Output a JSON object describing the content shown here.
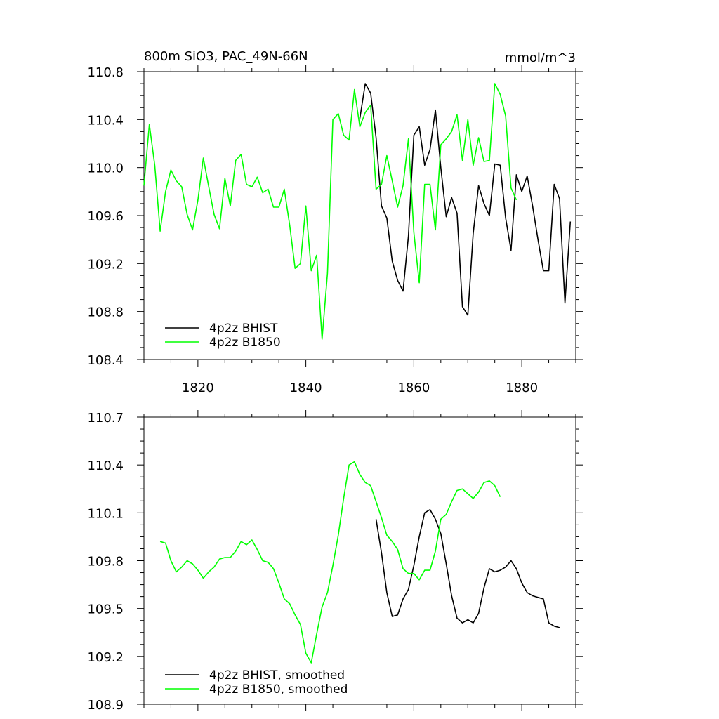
{
  "colors": {
    "bhist": "#000000",
    "b1850": "#00ff00"
  },
  "chart_data": [
    {
      "type": "line",
      "title": "800m SiO3, PAC_49N-66N",
      "units": "mmol/m^3",
      "xlim": [
        1810,
        1890
      ],
      "ylim": [
        108.4,
        110.8
      ],
      "x_major_ticks": [
        1820,
        1840,
        1860,
        1880
      ],
      "y_major_ticks": [
        108.4,
        108.8,
        109.2,
        109.6,
        110.0,
        110.4,
        110.8
      ],
      "x_tick_labels": [
        "1820",
        "1840",
        "1860",
        "1880"
      ],
      "y_tick_labels": [
        "108.4",
        "108.8",
        "109.2",
        "109.6",
        "110.0",
        "110.4",
        "110.8"
      ],
      "legend_position": "bottom-left",
      "series": [
        {
          "name": "4p2z BHIST",
          "color": "#000000",
          "x": [
            1850,
            1851,
            1852,
            1853,
            1854,
            1855,
            1856,
            1857,
            1858,
            1859,
            1860,
            1861,
            1862,
            1863,
            1864,
            1865,
            1866,
            1867,
            1868,
            1869,
            1870,
            1871,
            1872,
            1873,
            1874,
            1875,
            1876,
            1877,
            1878,
            1879,
            1880,
            1881,
            1882,
            1883,
            1884,
            1885,
            1886,
            1887,
            1888,
            1889
          ],
          "y": [
            110.41,
            110.7,
            110.62,
            110.25,
            109.68,
            109.58,
            109.22,
            109.06,
            108.97,
            109.43,
            110.27,
            110.34,
            110.02,
            110.15,
            110.48,
            110.0,
            109.59,
            109.75,
            109.62,
            108.84,
            108.77,
            109.45,
            109.85,
            109.7,
            109.6,
            110.03,
            110.02,
            109.58,
            109.31,
            109.94,
            109.8,
            109.93,
            109.68,
            109.4,
            109.14,
            109.14,
            109.86,
            109.74,
            108.87,
            109.55
          ]
        },
        {
          "name": "4p2z B1850",
          "color": "#00ff00",
          "x": [
            1810,
            1811,
            1812,
            1813,
            1814,
            1815,
            1816,
            1817,
            1818,
            1819,
            1820,
            1821,
            1822,
            1823,
            1824,
            1825,
            1826,
            1827,
            1828,
            1829,
            1830,
            1831,
            1832,
            1833,
            1834,
            1835,
            1836,
            1837,
            1838,
            1839,
            1840,
            1841,
            1842,
            1843,
            1844,
            1845,
            1846,
            1847,
            1848,
            1849,
            1850,
            1851,
            1852,
            1853,
            1854,
            1855,
            1856,
            1857,
            1858,
            1859,
            1860,
            1861,
            1862,
            1863,
            1864,
            1865,
            1866,
            1867,
            1868,
            1869,
            1870,
            1871,
            1872,
            1873,
            1874,
            1875,
            1876,
            1877,
            1878,
            1879
          ],
          "y": [
            109.85,
            110.36,
            110.02,
            109.47,
            109.8,
            109.98,
            109.89,
            109.84,
            109.61,
            109.48,
            109.73,
            110.08,
            109.84,
            109.61,
            109.49,
            109.91,
            109.68,
            110.06,
            110.11,
            109.86,
            109.84,
            109.92,
            109.79,
            109.82,
            109.67,
            109.67,
            109.82,
            109.52,
            109.16,
            109.2,
            109.68,
            109.14,
            109.27,
            108.57,
            109.12,
            110.4,
            110.45,
            110.27,
            110.23,
            110.65,
            110.34,
            110.46,
            110.52,
            109.82,
            109.86,
            110.1,
            109.89,
            109.67,
            109.85,
            110.24,
            109.46,
            109.04,
            109.86,
            109.86,
            109.48,
            110.19,
            110.24,
            110.3,
            110.44,
            110.06,
            110.4,
            110.02,
            110.25,
            110.05,
            110.06,
            110.7,
            110.61,
            110.43,
            109.83,
            109.73
          ]
        }
      ]
    },
    {
      "type": "line",
      "xlim": [
        1810,
        1890
      ],
      "ylim": [
        108.9,
        110.7
      ],
      "x_major_ticks": [
        1820,
        1840,
        1860,
        1880
      ],
      "y_major_ticks": [
        108.9,
        109.2,
        109.5,
        109.8,
        110.1,
        110.4,
        110.7
      ],
      "x_tick_labels": [],
      "y_tick_labels": [
        "108.9",
        "109.2",
        "109.5",
        "109.8",
        "110.1",
        "110.4",
        "110.7"
      ],
      "legend_position": "bottom-left",
      "series": [
        {
          "name": "4p2z BHIST, smoothed",
          "color": "#000000",
          "x": [
            1853,
            1854,
            1855,
            1856,
            1857,
            1858,
            1859,
            1860,
            1861,
            1862,
            1863,
            1864,
            1865,
            1866,
            1867,
            1868,
            1869,
            1870,
            1871,
            1872,
            1873,
            1874,
            1875,
            1876,
            1877,
            1878,
            1879,
            1880,
            1881,
            1882,
            1883,
            1884,
            1885,
            1886,
            1887
          ],
          "y": [
            110.06,
            109.85,
            109.6,
            109.45,
            109.46,
            109.56,
            109.62,
            109.77,
            109.95,
            110.1,
            110.12,
            110.06,
            109.97,
            109.78,
            109.58,
            109.44,
            109.41,
            109.43,
            109.41,
            109.47,
            109.63,
            109.75,
            109.73,
            109.74,
            109.76,
            109.8,
            109.75,
            109.66,
            109.6,
            109.58,
            109.57,
            109.56,
            109.41,
            109.39,
            109.38
          ]
        },
        {
          "name": "4p2z B1850, smoothed",
          "color": "#00ff00",
          "x": [
            1813,
            1814,
            1815,
            1816,
            1817,
            1818,
            1819,
            1820,
            1821,
            1822,
            1823,
            1824,
            1825,
            1826,
            1827,
            1828,
            1829,
            1830,
            1831,
            1832,
            1833,
            1834,
            1835,
            1836,
            1837,
            1838,
            1839,
            1840,
            1841,
            1842,
            1843,
            1844,
            1845,
            1846,
            1847,
            1848,
            1849,
            1850,
            1851,
            1852,
            1853,
            1854,
            1855,
            1856,
            1857,
            1858,
            1859,
            1860,
            1861,
            1862,
            1863,
            1864,
            1865,
            1866,
            1867,
            1868,
            1869,
            1870,
            1871,
            1872,
            1873,
            1874,
            1875,
            1876
          ],
          "y": [
            109.92,
            109.91,
            109.8,
            109.73,
            109.76,
            109.8,
            109.78,
            109.74,
            109.69,
            109.73,
            109.76,
            109.81,
            109.82,
            109.82,
            109.86,
            109.92,
            109.9,
            109.93,
            109.87,
            109.8,
            109.79,
            109.75,
            109.66,
            109.56,
            109.53,
            109.46,
            109.4,
            109.22,
            109.16,
            109.34,
            109.51,
            109.6,
            109.77,
            109.96,
            110.19,
            110.4,
            110.42,
            110.34,
            110.29,
            110.27,
            110.17,
            110.07,
            109.96,
            109.92,
            109.87,
            109.75,
            109.72,
            109.72,
            109.68,
            109.74,
            109.74,
            109.86,
            110.06,
            110.09,
            110.17,
            110.24,
            110.25,
            110.22,
            110.19,
            110.23,
            110.29,
            110.3,
            110.27,
            110.2
          ]
        }
      ]
    }
  ]
}
